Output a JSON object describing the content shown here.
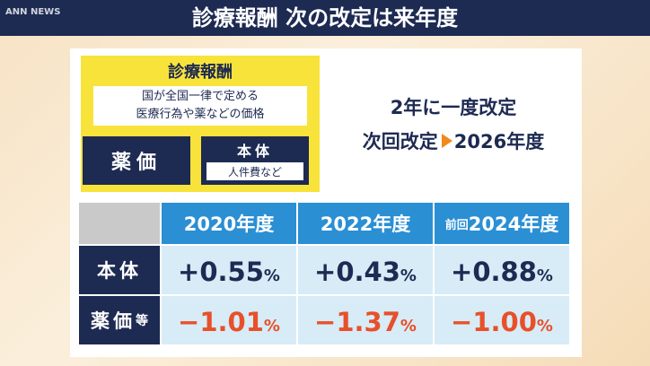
{
  "header": {
    "title": "診療報酬 次の改定は来年度",
    "logo": "ANN NEWS"
  },
  "box": {
    "title": "診療報酬",
    "description": [
      "国が全国一律で定める",
      "医療行為や薬などの価格"
    ],
    "left": "薬価",
    "right": "本体",
    "right_sub": "人件費など"
  },
  "summary": {
    "line1": "2年に一度改定",
    "line2_prefix": "次回改定",
    "line2_value": "2026年度"
  },
  "table": {
    "columns": [
      {
        "prefix": null,
        "label": "2020年度"
      },
      {
        "prefix": null,
        "label": "2022年度"
      },
      {
        "prefix": "前回",
        "label": "2024年度"
      }
    ],
    "rows": [
      {
        "label": "本体",
        "suffix": null,
        "cells": [
          {
            "value": "+0.55",
            "unit": "%"
          },
          {
            "value": "+0.43",
            "unit": "%"
          },
          {
            "value": "+0.88",
            "unit": "%"
          }
        ]
      },
      {
        "label": "薬価",
        "suffix": "等",
        "cells": [
          {
            "value": "−1.01",
            "unit": "%"
          },
          {
            "value": "−1.37",
            "unit": "%"
          },
          {
            "value": "−1.00",
            "unit": "%"
          }
        ]
      }
    ]
  }
}
